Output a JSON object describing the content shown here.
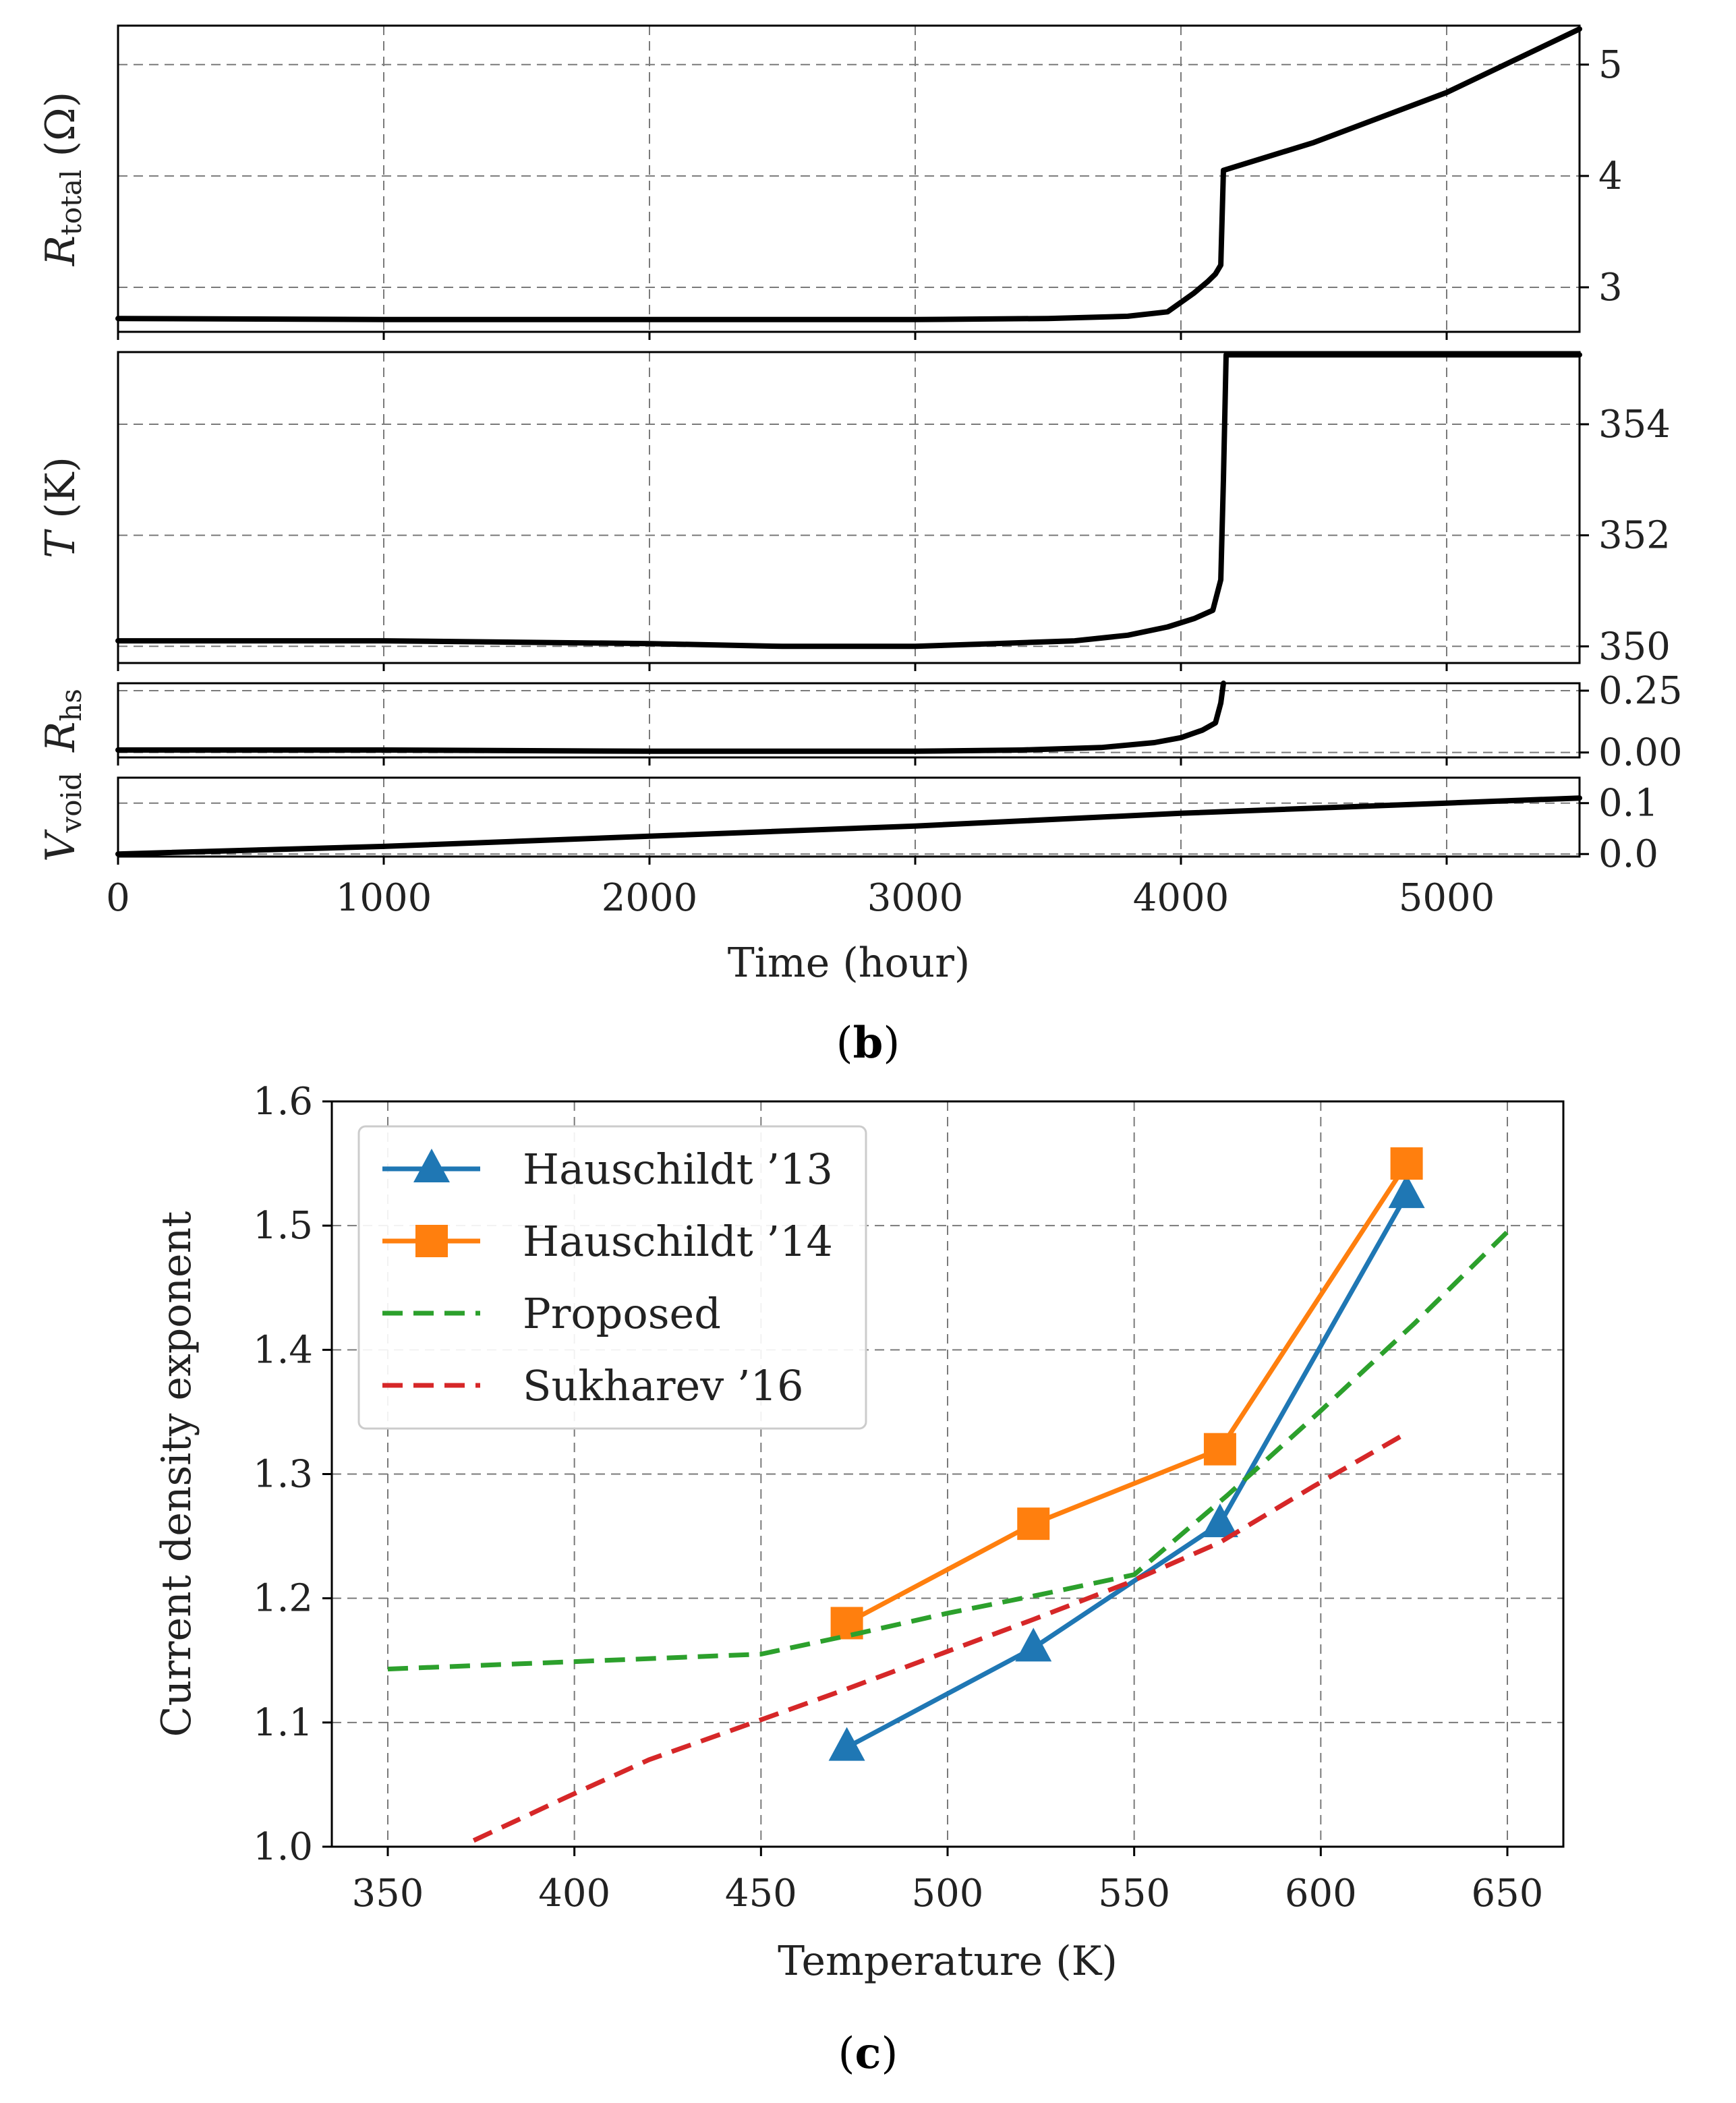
{
  "captions": {
    "b": "b",
    "c": "c"
  },
  "chart_data": [
    {
      "id": "b",
      "type": "line",
      "xlabel": "Time (hour)",
      "xlim": [
        0,
        5500
      ],
      "xticks": [
        "0",
        "1000",
        "2000",
        "3000",
        "4000",
        "5000"
      ],
      "xtick_values": [
        0,
        1000,
        2000,
        3000,
        4000,
        5000
      ],
      "grid": true,
      "panels": [
        {
          "name": "R_total",
          "ylabel_main": "R",
          "ylabel_sub": "total",
          "ylabel_unit": " (Ω)",
          "ylim": [
            2.6,
            5.35
          ],
          "yticks": [
            "3",
            "4",
            "5"
          ],
          "ytick_values": [
            3,
            4,
            5
          ],
          "series": [
            {
              "name": "R_total",
              "x": [
                0,
                1000,
                2000,
                3000,
                3500,
                3800,
                3950,
                4050,
                4100,
                4130,
                4150,
                4160,
                4200,
                4500,
                5000,
                5500
              ],
              "y": [
                2.72,
                2.71,
                2.71,
                2.71,
                2.72,
                2.74,
                2.78,
                2.95,
                3.05,
                3.12,
                3.2,
                4.05,
                4.08,
                4.3,
                4.75,
                5.32
              ]
            }
          ]
        },
        {
          "name": "T",
          "ylabel_main": "T",
          "ylabel_sub": "",
          "ylabel_unit": " (K)",
          "ylim": [
            349.7,
            355.3
          ],
          "yticks": [
            "350",
            "352",
            "354"
          ],
          "ytick_values": [
            350,
            352,
            354
          ],
          "series": [
            {
              "name": "T",
              "x": [
                0,
                1000,
                2000,
                2500,
                3000,
                3300,
                3600,
                3800,
                3950,
                4050,
                4120,
                4150,
                4160,
                4170,
                4200,
                5500
              ],
              "y": [
                350.1,
                350.1,
                350.05,
                350.0,
                350.0,
                350.05,
                350.1,
                350.2,
                350.35,
                350.5,
                350.65,
                351.2,
                353.0,
                355.25,
                355.25,
                355.25
              ]
            }
          ]
        },
        {
          "name": "R_hs",
          "ylabel_main": "R",
          "ylabel_sub": "hs",
          "ylabel_unit": "",
          "ylim": [
            -0.02,
            0.28
          ],
          "yticks": [
            "0.00",
            "0.25"
          ],
          "ytick_values": [
            0,
            0.25
          ],
          "series": [
            {
              "name": "R_hs",
              "x": [
                0,
                1000,
                2000,
                3000,
                3400,
                3700,
                3900,
                4000,
                4080,
                4130,
                4150,
                4160
              ],
              "y": [
                0.01,
                0.01,
                0.005,
                0.005,
                0.01,
                0.02,
                0.04,
                0.06,
                0.09,
                0.12,
                0.2,
                0.28
              ]
            }
          ]
        },
        {
          "name": "V_void",
          "ylabel_main": "V",
          "ylabel_sub": "void",
          "ylabel_unit": "",
          "ylim": [
            -0.005,
            0.15
          ],
          "yticks": [
            "0.0",
            "0.1"
          ],
          "ytick_values": [
            0,
            0.1
          ],
          "series": [
            {
              "name": "V_void",
              "x": [
                0,
                1000,
                2000,
                3000,
                4000,
                5000,
                5500
              ],
              "y": [
                0.0,
                0.015,
                0.035,
                0.055,
                0.08,
                0.1,
                0.11
              ]
            }
          ]
        }
      ]
    },
    {
      "id": "c",
      "type": "line",
      "title": "",
      "xlabel": "Temperature (K)",
      "ylabel": "Current density exponent",
      "xlim": [
        335,
        665
      ],
      "ylim": [
        1.0,
        1.6
      ],
      "xticks": [
        "350",
        "400",
        "450",
        "500",
        "550",
        "600",
        "650"
      ],
      "xtick_values": [
        350,
        400,
        450,
        500,
        550,
        600,
        650
      ],
      "yticks": [
        "1.0",
        "1.1",
        "1.2",
        "1.3",
        "1.4",
        "1.5",
        "1.6"
      ],
      "ytick_values": [
        1.0,
        1.1,
        1.2,
        1.3,
        1.4,
        1.5,
        1.6
      ],
      "grid": true,
      "legend": "upper-left",
      "series": [
        {
          "name": "Hauschildt ’13",
          "color": "#1f77b4",
          "style": "solid",
          "marker": "triangle",
          "x": [
            473,
            523,
            573,
            623
          ],
          "y": [
            1.08,
            1.16,
            1.26,
            1.525
          ]
        },
        {
          "name": "Hauschildt ’14",
          "color": "#ff7f0e",
          "style": "solid",
          "marker": "square",
          "x": [
            473,
            523,
            573,
            623
          ],
          "y": [
            1.18,
            1.26,
            1.32,
            1.55
          ]
        },
        {
          "name": "Proposed",
          "color": "#2ca02c",
          "style": "dashed",
          "marker": "none",
          "x": [
            350,
            400,
            450,
            475,
            500,
            525,
            550,
            575,
            600,
            625,
            650
          ],
          "y": [
            1.143,
            1.149,
            1.155,
            1.171,
            1.188,
            1.203,
            1.219,
            1.283,
            1.351,
            1.421,
            1.495
          ]
        },
        {
          "name": "Sukharev ’16",
          "color": "#d62728",
          "style": "dashed",
          "marker": "none",
          "x": [
            373,
            398,
            420,
            448,
            473,
            498,
            523,
            548,
            573,
            598,
            623
          ],
          "y": [
            1.005,
            1.04,
            1.07,
            1.1,
            1.127,
            1.155,
            1.183,
            1.212,
            1.245,
            1.29,
            1.333
          ]
        }
      ]
    }
  ]
}
